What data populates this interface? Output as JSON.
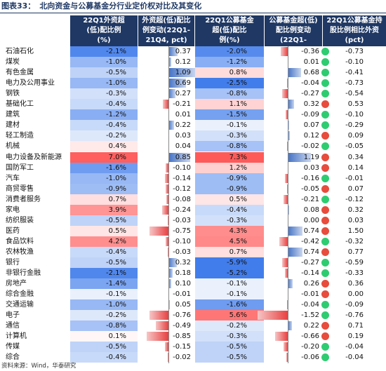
{
  "title": {
    "label": "图表33：",
    "text": "北向资金与公募基金分行业定价权对比及其变化"
  },
  "headers": [
    "22Q1外资超\n(低)配比例\n(%)",
    "外资超(低)配比\n例变动(22Q1-\n21Q4, pct)",
    "22Q1公募基金\n超(低)配比\n例(%)",
    "公募基金超(低)\n配比例变动(22Q1-\n21Q4, pct)",
    "22Q1公募基金持\n股比例相比外资\n(pct)"
  ],
  "source": "资料来源：Wind，华泰研究",
  "colors": {
    "header_bg": "#1f3864",
    "pos_dot": "#e74c3c",
    "neg_dot": "#2ecc71",
    "neg_bar": "#4472c4",
    "pos_bar": "#e84040"
  },
  "rows": [
    {
      "name": "石油石化",
      "a": "-2.1%",
      "b": "0.37",
      "c": "-2.0%",
      "d": "-0.36",
      "e": "-0.73",
      "av": -2.1,
      "bv": 0.37,
      "cv": -2.0,
      "dv": -0.36,
      "ev": -0.73
    },
    {
      "name": "煤炭",
      "a": "-1.0%",
      "b": "0.12",
      "c": "-1.2%",
      "d": "0.01",
      "e": "-0.10",
      "av": -1.0,
      "bv": 0.12,
      "cv": -1.2,
      "dv": 0.01,
      "ev": -0.1
    },
    {
      "name": "有色金属",
      "a": "-0.5%",
      "b": "1.09",
      "c": "0.8%",
      "d": "0.68",
      "e": "-0.41",
      "av": -0.5,
      "bv": 1.09,
      "cv": 0.8,
      "dv": 0.68,
      "ev": -0.41
    },
    {
      "name": "电力及公用事业",
      "a": "-1.0%",
      "b": "0.69",
      "c": "-2.5%",
      "d": "-0.04",
      "e": "-0.73",
      "av": -1.0,
      "bv": 0.69,
      "cv": -2.5,
      "dv": -0.04,
      "ev": -0.73
    },
    {
      "name": "钢铁",
      "a": "-0.3%",
      "b": "0.27",
      "c": "-0.8%",
      "d": "-0.27",
      "e": "-0.54",
      "av": -0.3,
      "bv": 0.27,
      "cv": -0.8,
      "dv": -0.27,
      "ev": -0.54
    },
    {
      "name": "基础化工",
      "a": "-0.4%",
      "b": "-0.21",
      "c": "1.1%",
      "d": "0.32",
      "e": "0.53",
      "av": -0.4,
      "bv": -0.21,
      "cv": 1.1,
      "dv": 0.32,
      "ev": 0.53
    },
    {
      "name": "建筑",
      "a": "-1.2%",
      "b": "0.01",
      "c": "-1.5%",
      "d": "-0.09",
      "e": "-0.10",
      "av": -1.2,
      "bv": 0.01,
      "cv": -1.5,
      "dv": -0.09,
      "ev": -0.1
    },
    {
      "name": "建材",
      "a": "-0.4%",
      "b": "0.22",
      "c": "-0.1%",
      "d": "0.07",
      "e": "-0.29",
      "av": -0.4,
      "bv": 0.22,
      "cv": -0.1,
      "dv": 0.07,
      "ev": -0.29
    },
    {
      "name": "轻工制造",
      "a": "-0.2%",
      "b": "0.03",
      "c": "-0.3%",
      "d": "0.12",
      "e": "0.09",
      "av": -0.2,
      "bv": 0.03,
      "cv": -0.3,
      "dv": 0.12,
      "ev": 0.09
    },
    {
      "name": "机械",
      "a": "0.4%",
      "b": "0.04",
      "c": "-0.8%",
      "d": "-0.02",
      "e": "-0.05",
      "av": 0.4,
      "bv": 0.04,
      "cv": -0.8,
      "dv": -0.02,
      "ev": -0.05
    },
    {
      "name": "电力设备及新能源",
      "a": "7.0%",
      "b": "0.85",
      "c": "7.3%",
      "d": "1.19",
      "e": "0.34",
      "av": 7.0,
      "bv": 0.85,
      "cv": 7.3,
      "dv": 1.19,
      "ev": 0.34
    },
    {
      "name": "国防军工",
      "a": "-1.6%",
      "b": "-0.10",
      "c": "1.2%",
      "d": "0.03",
      "e": "0.14",
      "av": -1.6,
      "bv": -0.1,
      "cv": 1.2,
      "dv": 0.03,
      "ev": 0.14
    },
    {
      "name": "汽车",
      "a": "-1.0%",
      "b": "-0.14",
      "c": "-0.9%",
      "d": "-0.16",
      "e": "-0.01",
      "av": -1.0,
      "bv": -0.14,
      "cv": -0.9,
      "dv": -0.16,
      "ev": -0.01
    },
    {
      "name": "商贸零售",
      "a": "-0.9%",
      "b": "-0.12",
      "c": "-0.9%",
      "d": "-0.05",
      "e": "0.07",
      "av": -0.9,
      "bv": -0.12,
      "cv": -0.9,
      "dv": -0.05,
      "ev": 0.07
    },
    {
      "name": "消费者服务",
      "a": "0.7%",
      "b": "-0.08",
      "c": "0.5%",
      "d": "-0.21",
      "e": "-0.12",
      "av": 0.7,
      "bv": -0.08,
      "cv": 0.5,
      "dv": -0.21,
      "ev": -0.12
    },
    {
      "name": "家电",
      "a": "3.9%",
      "b": "-0.24",
      "c": "-0.4%",
      "d": "0.08",
      "e": "0.32",
      "av": 3.9,
      "bv": -0.24,
      "cv": -0.4,
      "dv": 0.08,
      "ev": 0.32
    },
    {
      "name": "纺织服装",
      "a": "-0.5%",
      "b": "-0.03",
      "c": "-0.3%",
      "d": "0.00",
      "e": "0.03",
      "av": -0.5,
      "bv": -0.03,
      "cv": -0.3,
      "dv": 0.0,
      "ev": 0.03
    },
    {
      "name": "医药",
      "a": "0.5%",
      "b": "-0.75",
      "c": "4.3%",
      "d": "0.74",
      "e": "1.50",
      "av": 0.5,
      "bv": -0.75,
      "cv": 4.3,
      "dv": 0.74,
      "ev": 1.5
    },
    {
      "name": "食品饮料",
      "a": "4.2%",
      "b": "-0.10",
      "c": "4.5%",
      "d": "-0.42",
      "e": "-0.32",
      "av": 4.2,
      "bv": -0.1,
      "cv": 4.5,
      "dv": -0.42,
      "ev": -0.32
    },
    {
      "name": "农林牧渔",
      "a": "-0.4%",
      "b": "-0.03",
      "c": "0.7%",
      "d": "0.74",
      "e": "0.77",
      "av": -0.4,
      "bv": -0.03,
      "cv": 0.7,
      "dv": 0.74,
      "ev": 0.77
    },
    {
      "name": "银行",
      "a": "-0.5%",
      "b": "0.32",
      "c": "-5.9%",
      "d": "-0.27",
      "e": "-0.59",
      "av": -0.5,
      "bv": 0.32,
      "cv": -5.9,
      "dv": -0.27,
      "ev": -0.59
    },
    {
      "name": "非银行金融",
      "a": "-2.1%",
      "b": "0.18",
      "c": "-5.2%",
      "d": "-0.14",
      "e": "-0.33",
      "av": -2.1,
      "bv": 0.18,
      "cv": -5.2,
      "dv": -0.14,
      "ev": -0.33
    },
    {
      "name": "房地产",
      "a": "-1.4%",
      "b": "0.10",
      "c": "-0.1%",
      "d": "0.26",
      "e": "0.36",
      "av": -1.4,
      "bv": 0.1,
      "cv": -0.1,
      "dv": 0.26,
      "ev": 0.36
    },
    {
      "name": "综合金融",
      "a": "-0.1%",
      "b": "-0.01",
      "c": "-0.1%",
      "d": "-0.01",
      "e": "0.00",
      "av": -0.1,
      "bv": -0.01,
      "cv": -0.1,
      "dv": -0.01,
      "ev": 0.0
    },
    {
      "name": "交通运输",
      "a": "-1.0%",
      "b": "0.05",
      "c": "-1.6%",
      "d": "-0.04",
      "e": "-0.09",
      "av": -1.0,
      "bv": 0.05,
      "cv": -1.6,
      "dv": -0.04,
      "ev": -0.09
    },
    {
      "name": "电子",
      "a": "-0.2%",
      "b": "-0.76",
      "c": "5.6%",
      "d": "-1.52",
      "e": "-0.76",
      "av": -0.2,
      "bv": -0.76,
      "cv": 5.6,
      "dv": -1.52,
      "ev": -0.76
    },
    {
      "name": "通信",
      "a": "-0.8%",
      "b": "-0.49",
      "c": "-0.2%",
      "d": "0.22",
      "e": "0.71",
      "av": -0.8,
      "bv": -0.49,
      "cv": -0.2,
      "dv": 0.22,
      "ev": 0.71
    },
    {
      "name": "计算机",
      "a": "0.1%",
      "b": "-0.85",
      "c": "-0.3%",
      "d": "-0.66",
      "e": "0.19",
      "av": 0.1,
      "bv": -0.85,
      "cv": -0.3,
      "dv": -0.66,
      "ev": 0.19
    },
    {
      "name": "传媒",
      "a": "-0.5%",
      "b": "-0.15",
      "c": "-0.5%",
      "d": "-0.20",
      "e": "-0.04",
      "av": -0.5,
      "bv": -0.15,
      "cv": -0.5,
      "dv": -0.2,
      "ev": -0.04
    },
    {
      "name": "综合",
      "a": "-0.4%",
      "b": "-0.02",
      "c": "-0.5%",
      "d": "-0.06",
      "e": "-0.04",
      "av": -0.4,
      "bv": -0.02,
      "cv": -0.5,
      "dv": -0.06,
      "ev": -0.04
    }
  ]
}
